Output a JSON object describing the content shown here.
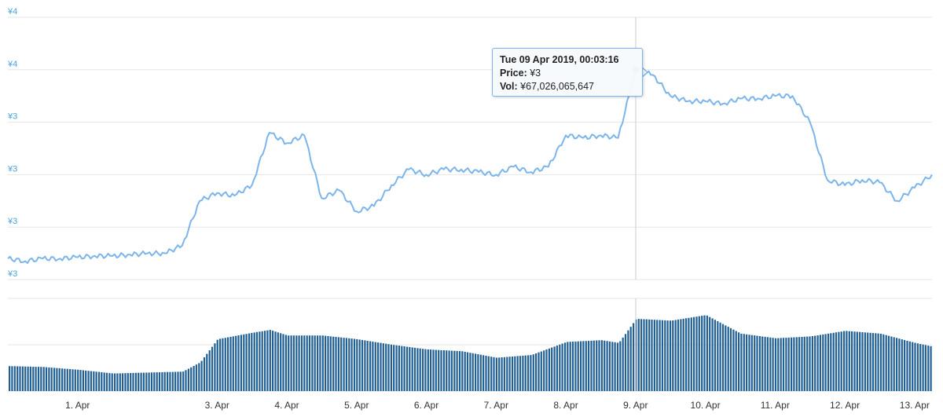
{
  "chart_data": {
    "type": "line",
    "x_start": "2019-03-31 00:00",
    "x_end": "2019-04-13 06:00",
    "y_tick_labels": [
      "¥4",
      "¥4",
      "¥3",
      "¥3",
      "¥3",
      "¥3"
    ],
    "x_tick_labels": [
      "1. Apr",
      "3. Apr",
      "4. Apr",
      "5. Apr",
      "6. Apr",
      "7. Apr",
      "8. Apr",
      "9. Apr",
      "10. Apr",
      "11. Apr",
      "12. Apr",
      "13. Apr"
    ],
    "grid": true,
    "legend": "none",
    "colors": {
      "price": "#7cb5ec",
      "volume": "#1f5f94",
      "y_label": "#4aa3df"
    },
    "series": [
      {
        "kind": "price",
        "y_range": [
          3.0,
          4.0
        ],
        "points": [
          [
            "2019-03-31 00:00",
            3.08
          ],
          [
            "2019-03-31 06:00",
            3.07
          ],
          [
            "2019-03-31 12:00",
            3.08
          ],
          [
            "2019-03-31 18:00",
            3.08
          ],
          [
            "2019-04-01 00:00",
            3.085
          ],
          [
            "2019-04-01 06:00",
            3.09
          ],
          [
            "2019-04-01 12:00",
            3.09
          ],
          [
            "2019-04-01 18:00",
            3.095
          ],
          [
            "2019-04-02 00:00",
            3.1
          ],
          [
            "2019-04-02 06:00",
            3.1
          ],
          [
            "2019-04-02 12:00",
            3.13
          ],
          [
            "2019-04-02 18:00",
            3.3
          ],
          [
            "2019-04-03 00:00",
            3.33
          ],
          [
            "2019-04-03 06:00",
            3.32
          ],
          [
            "2019-04-03 12:00",
            3.36
          ],
          [
            "2019-04-03 18:00",
            3.56
          ],
          [
            "2019-04-04 00:00",
            3.52
          ],
          [
            "2019-04-04 06:00",
            3.55
          ],
          [
            "2019-04-04 12:00",
            3.31
          ],
          [
            "2019-04-04 18:00",
            3.34
          ],
          [
            "2019-04-05 00:00",
            3.26
          ],
          [
            "2019-04-05 06:00",
            3.28
          ],
          [
            "2019-04-05 12:00",
            3.36
          ],
          [
            "2019-04-05 18:00",
            3.42
          ],
          [
            "2019-04-06 00:00",
            3.4
          ],
          [
            "2019-04-06 06:00",
            3.42
          ],
          [
            "2019-04-06 12:00",
            3.42
          ],
          [
            "2019-04-06 18:00",
            3.41
          ],
          [
            "2019-04-07 00:00",
            3.4
          ],
          [
            "2019-04-07 06:00",
            3.43
          ],
          [
            "2019-04-07 12:00",
            3.41
          ],
          [
            "2019-04-07 18:00",
            3.43
          ],
          [
            "2019-04-08 00:00",
            3.55
          ],
          [
            "2019-04-08 06:00",
            3.54
          ],
          [
            "2019-04-08 12:00",
            3.55
          ],
          [
            "2019-04-08 18:00",
            3.54
          ],
          [
            "2019-04-09 00:03",
            3.8
          ],
          [
            "2019-04-09 06:00",
            3.78
          ],
          [
            "2019-04-09 12:00",
            3.7
          ],
          [
            "2019-04-09 18:00",
            3.68
          ],
          [
            "2019-04-10 00:00",
            3.68
          ],
          [
            "2019-04-10 06:00",
            3.67
          ],
          [
            "2019-04-10 12:00",
            3.69
          ],
          [
            "2019-04-10 18:00",
            3.69
          ],
          [
            "2019-04-11 00:00",
            3.7
          ],
          [
            "2019-04-11 06:00",
            3.7
          ],
          [
            "2019-04-11 12:00",
            3.6
          ],
          [
            "2019-04-11 18:00",
            3.38
          ],
          [
            "2019-04-12 00:00",
            3.36
          ],
          [
            "2019-04-12 06:00",
            3.38
          ],
          [
            "2019-04-12 12:00",
            3.37
          ],
          [
            "2019-04-12 18:00",
            3.3
          ],
          [
            "2019-04-13 00:00",
            3.35
          ],
          [
            "2019-04-13 06:00",
            3.4
          ]
        ]
      },
      {
        "kind": "volume",
        "y_range": [
          0,
          1
        ],
        "points": [
          [
            "2019-03-31 00:00",
            0.27
          ],
          [
            "2019-03-31 12:00",
            0.26
          ],
          [
            "2019-04-01 00:00",
            0.23
          ],
          [
            "2019-04-01 12:00",
            0.19
          ],
          [
            "2019-04-02 00:00",
            0.2
          ],
          [
            "2019-04-02 12:00",
            0.21
          ],
          [
            "2019-04-02 18:00",
            0.31
          ],
          [
            "2019-04-03 00:00",
            0.56
          ],
          [
            "2019-04-03 12:00",
            0.63
          ],
          [
            "2019-04-03 18:00",
            0.66
          ],
          [
            "2019-04-04 00:00",
            0.6
          ],
          [
            "2019-04-04 12:00",
            0.6
          ],
          [
            "2019-04-05 00:00",
            0.56
          ],
          [
            "2019-04-05 12:00",
            0.5
          ],
          [
            "2019-04-06 00:00",
            0.45
          ],
          [
            "2019-04-06 12:00",
            0.43
          ],
          [
            "2019-04-07 00:00",
            0.36
          ],
          [
            "2019-04-07 12:00",
            0.39
          ],
          [
            "2019-04-08 00:00",
            0.53
          ],
          [
            "2019-04-08 12:00",
            0.55
          ],
          [
            "2019-04-08 18:00",
            0.52
          ],
          [
            "2019-04-09 00:03",
            0.78
          ],
          [
            "2019-04-09 12:00",
            0.76
          ],
          [
            "2019-04-10 00:00",
            0.82
          ],
          [
            "2019-04-10 12:00",
            0.62
          ],
          [
            "2019-04-11 00:00",
            0.57
          ],
          [
            "2019-04-11 12:00",
            0.59
          ],
          [
            "2019-04-12 00:00",
            0.65
          ],
          [
            "2019-04-12 12:00",
            0.62
          ],
          [
            "2019-04-13 00:00",
            0.52
          ],
          [
            "2019-04-13 06:00",
            0.48
          ]
        ]
      }
    ],
    "tooltip": {
      "title": "Tue 09 Apr 2019, 00:03:16",
      "price_label": "Price:",
      "price_value": "¥3",
      "vol_label": "Vol:",
      "vol_value": "¥67,026,065,647",
      "at": "2019-04-09 00:03"
    }
  }
}
